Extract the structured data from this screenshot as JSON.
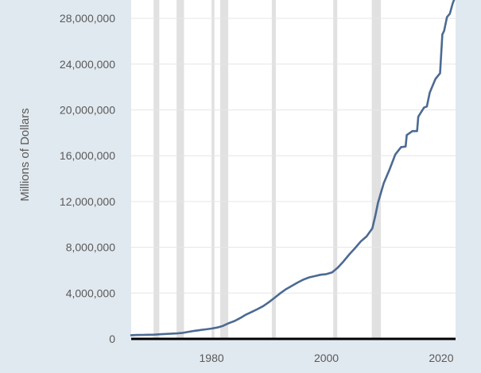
{
  "chart_data": {
    "type": "line",
    "title": "",
    "xlabel": "",
    "ylabel": "Millions of Dollars",
    "xlim": [
      1966,
      2022.5
    ],
    "ylim": [
      0,
      29600000
    ],
    "x_ticks": [
      1980,
      2000,
      2020
    ],
    "x_tick_labels": [
      "1980",
      "2000",
      "2020"
    ],
    "y_ticks": [
      0,
      4000000,
      8000000,
      12000000,
      16000000,
      20000000,
      24000000,
      28000000
    ],
    "y_tick_labels": [
      "0",
      "4,000,000",
      "8,000,000",
      "12,000,000",
      "16,000,000",
      "20,000,000",
      "24,000,000",
      "28,000,000"
    ],
    "grid": "horizontal",
    "recession_shading": [
      [
        1969.9,
        1970.9
      ],
      [
        1973.9,
        1975.2
      ],
      [
        1980.0,
        1980.5
      ],
      [
        1981.5,
        1982.9
      ],
      [
        1990.5,
        1991.2
      ],
      [
        2001.2,
        2001.9
      ],
      [
        2007.9,
        2009.5
      ]
    ],
    "series": [
      {
        "name": "",
        "color": "#4c6a92",
        "x": [
          1966,
          1967,
          1968,
          1969,
          1970,
          1971,
          1972,
          1973,
          1974,
          1975,
          1976,
          1977,
          1978,
          1979,
          1980,
          1981,
          1982,
          1983,
          1984,
          1985,
          1986,
          1987,
          1988,
          1989,
          1990,
          1991,
          1992,
          1993,
          1994,
          1995,
          1996,
          1997,
          1998,
          1999,
          2000,
          2001,
          2002,
          2003,
          2004,
          2005,
          2006,
          2007,
          2008,
          2008.5,
          2009,
          2010,
          2011,
          2012,
          2013,
          2013.8,
          2014,
          2015,
          2015.8,
          2016,
          2017,
          2017.5,
          2018,
          2019,
          2019.8,
          2020.2,
          2020.5,
          2021,
          2021.5,
          2022,
          2022.3
        ],
        "y": [
          320000,
          340000,
          350000,
          360000,
          370000,
          400000,
          430000,
          460000,
          480000,
          530000,
          620000,
          700000,
          770000,
          830000,
          900000,
          990000,
          1140000,
          1370000,
          1560000,
          1820000,
          2120000,
          2350000,
          2600000,
          2860000,
          3210000,
          3600000,
          4000000,
          4350000,
          4640000,
          4920000,
          5180000,
          5370000,
          5480000,
          5600000,
          5660000,
          5810000,
          6230000,
          6780000,
          7380000,
          7930000,
          8510000,
          8950000,
          9650000,
          10700000,
          11900000,
          13600000,
          14800000,
          16100000,
          16750000,
          16800000,
          17800000,
          18150000,
          18150000,
          19400000,
          20200000,
          20300000,
          21500000,
          22700000,
          23200000,
          26600000,
          26900000,
          28100000,
          28400000,
          29300000,
          29700000
        ]
      }
    ]
  }
}
